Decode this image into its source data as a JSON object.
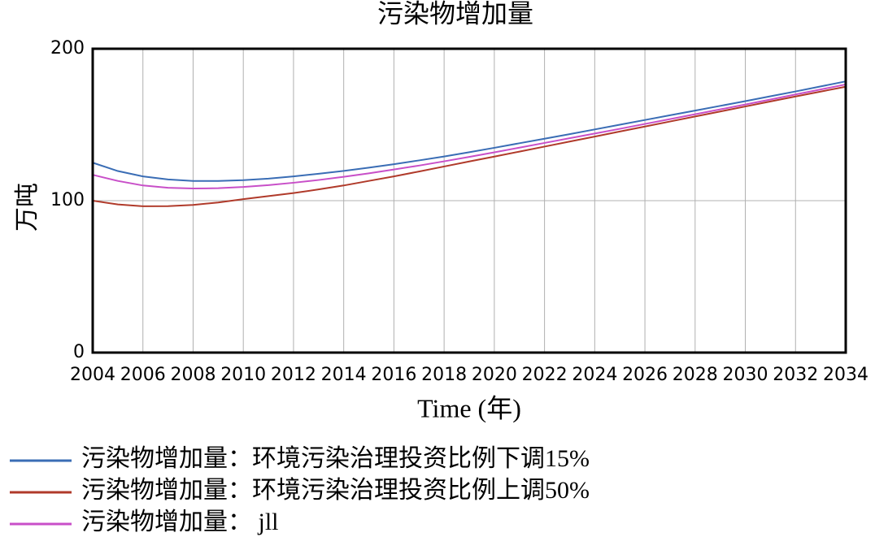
{
  "chart_data": {
    "type": "line",
    "title": "污染物增加量",
    "ylabel": "万吨",
    "xlabel": "Time (年)",
    "x": [
      2004,
      2005,
      2006,
      2007,
      2008,
      2009,
      2010,
      2011,
      2012,
      2013,
      2014,
      2015,
      2016,
      2017,
      2018,
      2019,
      2020,
      2021,
      2022,
      2023,
      2024,
      2025,
      2026,
      2027,
      2028,
      2029,
      2030,
      2031,
      2032,
      2033,
      2034
    ],
    "series": [
      {
        "name": "污染物增加量：环境污染治理投资比例下调15%",
        "color": "#3a6db5",
        "values": [
          125,
          119.5,
          116,
          114,
          113,
          113,
          113.5,
          114.5,
          116,
          117.7,
          119.6,
          121.7,
          124,
          126.5,
          129.1,
          131.9,
          134.8,
          137.8,
          140.8,
          143.8,
          146.9,
          150,
          153.1,
          156.2,
          159.3,
          162.4,
          165.5,
          168.7,
          171.9,
          175.2,
          178.5
        ]
      },
      {
        "name": "污染物增加量：环境污染治理投资比例上调50%",
        "color": "#b03a2a",
        "values": [
          100,
          97.5,
          96.3,
          96.4,
          97.2,
          98.8,
          101,
          103,
          105,
          107.4,
          110,
          113,
          116,
          119.2,
          122.5,
          125.8,
          129,
          132.3,
          135.6,
          138.9,
          142.2,
          145.5,
          148.8,
          152.1,
          155.4,
          158.7,
          162,
          165.3,
          168.6,
          171.8,
          175
        ]
      },
      {
        "name": "污染物增加量： jll",
        "color": "#c84fc8",
        "values": [
          117,
          113,
          110,
          108.5,
          108,
          108.2,
          109,
          110.2,
          111.8,
          113.6,
          115.7,
          118,
          120.5,
          123.1,
          125.9,
          128.8,
          131.8,
          134.9,
          138,
          141.1,
          144.2,
          147.3,
          150.5,
          153.7,
          156.9,
          160.1,
          163.3,
          166.6,
          169.9,
          173.2,
          176.5
        ]
      }
    ],
    "xlim": [
      2004,
      2034
    ],
    "xticks": [
      2004,
      2006,
      2008,
      2010,
      2012,
      2014,
      2016,
      2018,
      2020,
      2022,
      2024,
      2026,
      2028,
      2030,
      2032,
      2034
    ],
    "ylim": [
      0,
      200
    ],
    "yticks": [
      0,
      100,
      200
    ],
    "grid": true
  }
}
